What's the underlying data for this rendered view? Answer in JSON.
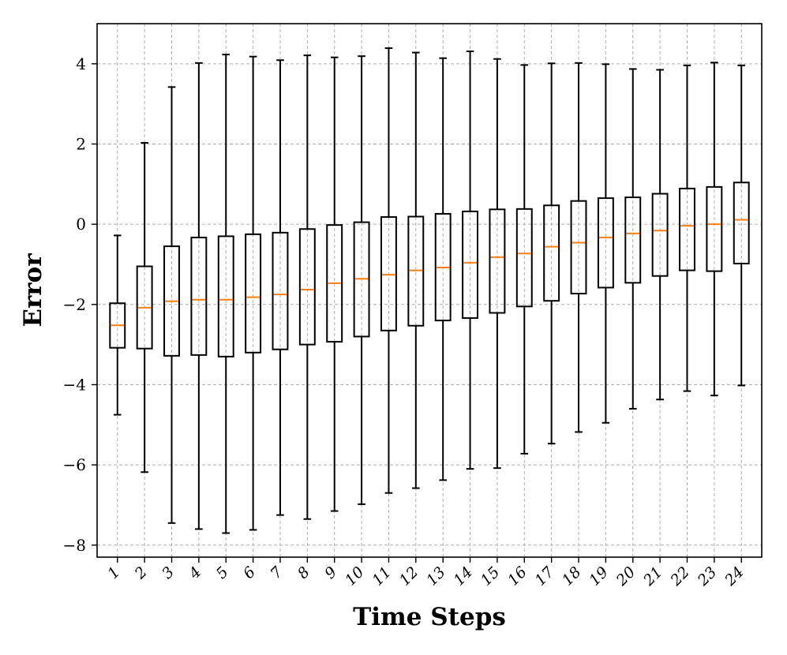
{
  "chart_data": {
    "type": "boxplot",
    "xlabel": "Time Steps",
    "ylabel": "Error",
    "ylim": [
      -8.3,
      5.0
    ],
    "yticks": [
      -8,
      -6,
      -4,
      -2,
      0,
      2,
      4
    ],
    "ytick_labels": [
      "−8",
      "−6",
      "−4",
      "−2",
      "0",
      "2",
      "4"
    ],
    "grid": true,
    "colors": {
      "box": "#000000",
      "median": "#ff7f0e",
      "grid": "#b0b0b0"
    },
    "categories": [
      "1",
      "2",
      "3",
      "4",
      "5",
      "6",
      "7",
      "8",
      "9",
      "10",
      "11",
      "12",
      "13",
      "14",
      "15",
      "16",
      "17",
      "18",
      "19",
      "20",
      "21",
      "22",
      "23",
      "24"
    ],
    "boxes": [
      {
        "min": -4.75,
        "q1": -3.08,
        "median": -2.52,
        "q3": -1.97,
        "max": -0.28
      },
      {
        "min": -6.18,
        "q1": -3.1,
        "median": -2.08,
        "q3": -1.05,
        "max": 2.03
      },
      {
        "min": -7.45,
        "q1": -3.28,
        "median": -1.92,
        "q3": -0.55,
        "max": 3.42
      },
      {
        "min": -7.6,
        "q1": -3.26,
        "median": -1.88,
        "q3": -0.33,
        "max": 4.02
      },
      {
        "min": -7.7,
        "q1": -3.3,
        "median": -1.88,
        "q3": -0.3,
        "max": 4.23
      },
      {
        "min": -7.62,
        "q1": -3.2,
        "median": -1.82,
        "q3": -0.25,
        "max": 4.18
      },
      {
        "min": -7.25,
        "q1": -3.12,
        "median": -1.75,
        "q3": -0.21,
        "max": 4.09
      },
      {
        "min": -7.35,
        "q1": -3.0,
        "median": -1.63,
        "q3": -0.12,
        "max": 4.21
      },
      {
        "min": -7.15,
        "q1": -2.93,
        "median": -1.47,
        "q3": -0.02,
        "max": 4.16
      },
      {
        "min": -6.98,
        "q1": -2.8,
        "median": -1.36,
        "q3": 0.05,
        "max": 4.19
      },
      {
        "min": -6.7,
        "q1": -2.65,
        "median": -1.26,
        "q3": 0.18,
        "max": 4.39
      },
      {
        "min": -6.58,
        "q1": -2.53,
        "median": -1.15,
        "q3": 0.19,
        "max": 4.28
      },
      {
        "min": -6.38,
        "q1": -2.4,
        "median": -1.08,
        "q3": 0.26,
        "max": 4.14
      },
      {
        "min": -6.1,
        "q1": -2.34,
        "median": -0.96,
        "q3": 0.32,
        "max": 4.31
      },
      {
        "min": -6.08,
        "q1": -2.21,
        "median": -0.82,
        "q3": 0.37,
        "max": 4.12
      },
      {
        "min": -5.72,
        "q1": -2.05,
        "median": -0.73,
        "q3": 0.38,
        "max": 3.97
      },
      {
        "min": -5.47,
        "q1": -1.91,
        "median": -0.56,
        "q3": 0.47,
        "max": 4.01
      },
      {
        "min": -5.18,
        "q1": -1.73,
        "median": -0.46,
        "q3": 0.58,
        "max": 4.02
      },
      {
        "min": -4.95,
        "q1": -1.58,
        "median": -0.33,
        "q3": 0.65,
        "max": 3.99
      },
      {
        "min": -4.6,
        "q1": -1.46,
        "median": -0.23,
        "q3": 0.67,
        "max": 3.87
      },
      {
        "min": -4.37,
        "q1": -1.29,
        "median": -0.16,
        "q3": 0.76,
        "max": 3.85
      },
      {
        "min": -4.16,
        "q1": -1.15,
        "median": -0.04,
        "q3": 0.89,
        "max": 3.96
      },
      {
        "min": -4.27,
        "q1": -1.17,
        "median": 0.0,
        "q3": 0.93,
        "max": 4.03
      },
      {
        "min": -4.02,
        "q1": -0.98,
        "median": 0.11,
        "q3": 1.04,
        "max": 3.96
      }
    ]
  }
}
